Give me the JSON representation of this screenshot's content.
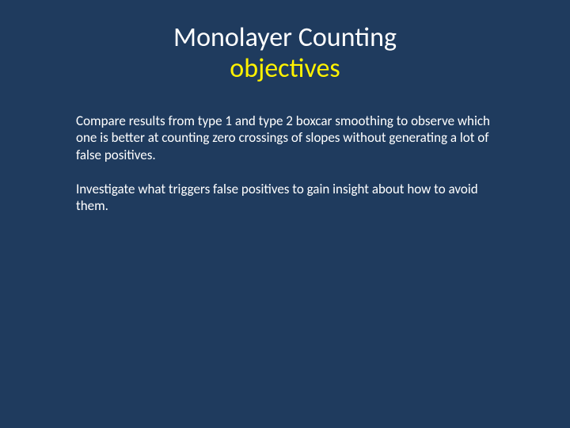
{
  "slide": {
    "background_color": "#1f3b5e",
    "title": {
      "line1": "Monolayer Counting",
      "line2": "objectives",
      "line1_color": "#ffffff",
      "line2_color": "#fff200",
      "fontsize": 34
    },
    "body": {
      "color": "#ffffff",
      "fontsize": 17,
      "paragraphs": [
        "Compare results from type 1 and type 2 boxcar smoothing to observe which one is better at counting zero crossings of slopes without generating a lot of false positives.",
        "Investigate what triggers false positives to gain insight about how to avoid them."
      ]
    }
  }
}
